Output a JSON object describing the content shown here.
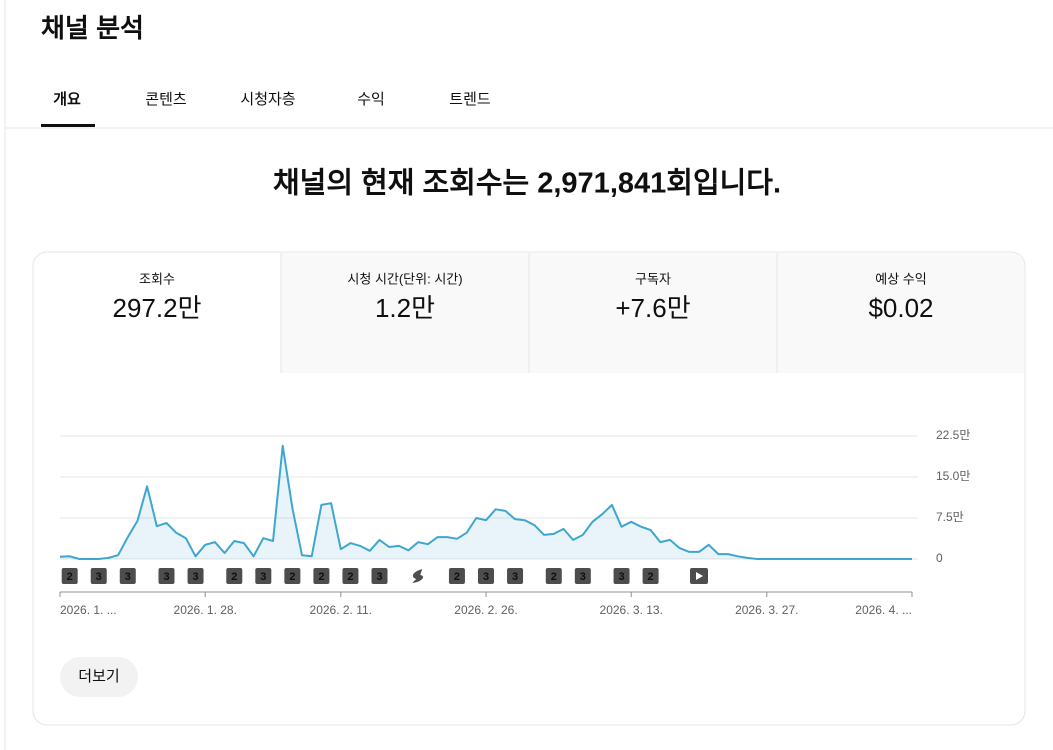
{
  "header": {
    "title": "채널 분석"
  },
  "tabs": [
    "개요",
    "콘텐츠",
    "시청자층",
    "수익",
    "트렌드"
  ],
  "headline": "채널의 현재 조회수는 2,971,841회입니다.",
  "metrics": [
    {
      "label": "조회수",
      "value": "297.2만"
    },
    {
      "label": "시청 시간(단위: 시간)",
      "value": "1.2만"
    },
    {
      "label": "구독자",
      "value": "+7.6만"
    },
    {
      "label": "예상 수익",
      "value": "$0.02"
    }
  ],
  "chart_data": {
    "type": "line",
    "x": [
      "2026. 1. ...",
      null,
      null,
      null,
      null,
      null,
      null,
      null,
      null,
      null,
      null,
      null,
      null,
      null,
      null,
      "2026. 1. 28.",
      null,
      null,
      null,
      null,
      null,
      null,
      null,
      null,
      null,
      null,
      null,
      null,
      null,
      "2026. 2. 11.",
      null,
      null,
      null,
      null,
      null,
      null,
      null,
      null,
      null,
      null,
      null,
      null,
      null,
      null,
      "2026. 2. 26.",
      null,
      null,
      null,
      null,
      null,
      null,
      null,
      null,
      null,
      null,
      null,
      null,
      null,
      null,
      "2026. 3. 13.",
      null,
      null,
      null,
      null,
      null,
      null,
      null,
      null,
      null,
      null,
      null,
      null,
      null,
      "2026. 3. 27.",
      null,
      null,
      null,
      null,
      null,
      null,
      null,
      null,
      null,
      null,
      null,
      null,
      null,
      null,
      "2026. 4. ..."
    ],
    "series": [
      {
        "color": "#3ea6d0",
        "values": [
          0.4,
          0.5,
          0,
          0,
          0,
          0.2,
          0.7,
          4,
          7,
          13.3,
          6,
          6.6,
          4.8,
          3.8,
          0.5,
          2.6,
          3.1,
          1.1,
          3.3,
          2.9,
          0.5,
          3.8,
          3.3,
          20.7,
          9.3,
          0.7,
          0.5,
          9.9,
          10.2,
          1.8,
          2.9,
          2.4,
          1.5,
          3.5,
          2.2,
          2.4,
          1.6,
          3.1,
          2.7,
          4,
          4,
          3.7,
          4.8,
          7.5,
          7.1,
          9.1,
          8.8,
          7.3,
          7.1,
          6.2,
          4.4,
          4.6,
          5.5,
          3.5,
          4.4,
          6.8,
          8.2,
          9.9,
          5.9,
          6.8,
          5.9,
          5.3,
          3.1,
          3.5,
          2,
          1.3,
          1.3,
          2.6,
          0.9,
          0.9,
          0.5,
          0.2,
          0,
          0,
          0,
          0,
          0,
          0,
          0,
          0,
          0,
          0,
          0,
          0,
          0,
          0,
          0,
          0,
          0
        ]
      }
    ],
    "ylim": [
      0,
      22.5
    ],
    "yticks": [
      0,
      {
        "value": 7.5,
        "label": "7.5만"
      },
      {
        "value": 15,
        "label": "15.0만"
      },
      {
        "value": 22.5,
        "label": "22.5만"
      }
    ],
    "grid": true,
    "upload_markers": [
      null,
      2,
      null,
      null,
      3,
      null,
      null,
      3,
      null,
      null,
      null,
      3,
      null,
      null,
      3,
      null,
      null,
      null,
      2,
      null,
      null,
      3,
      null,
      null,
      2,
      null,
      null,
      2,
      null,
      null,
      2,
      null,
      null,
      3,
      null,
      null,
      null,
      null,
      null,
      null,
      null,
      2,
      null,
      null,
      3,
      null,
      null,
      3,
      null,
      null,
      null,
      2,
      null,
      null,
      3,
      null,
      null,
      null,
      3,
      null,
      null,
      2,
      null,
      null,
      null,
      null,
      null,
      null,
      null,
      null,
      null,
      null,
      null,
      null,
      null,
      null,
      null,
      null,
      null,
      null,
      null,
      null,
      null,
      null,
      null,
      null,
      null,
      null,
      null
    ]
  },
  "more_button": "더보기"
}
